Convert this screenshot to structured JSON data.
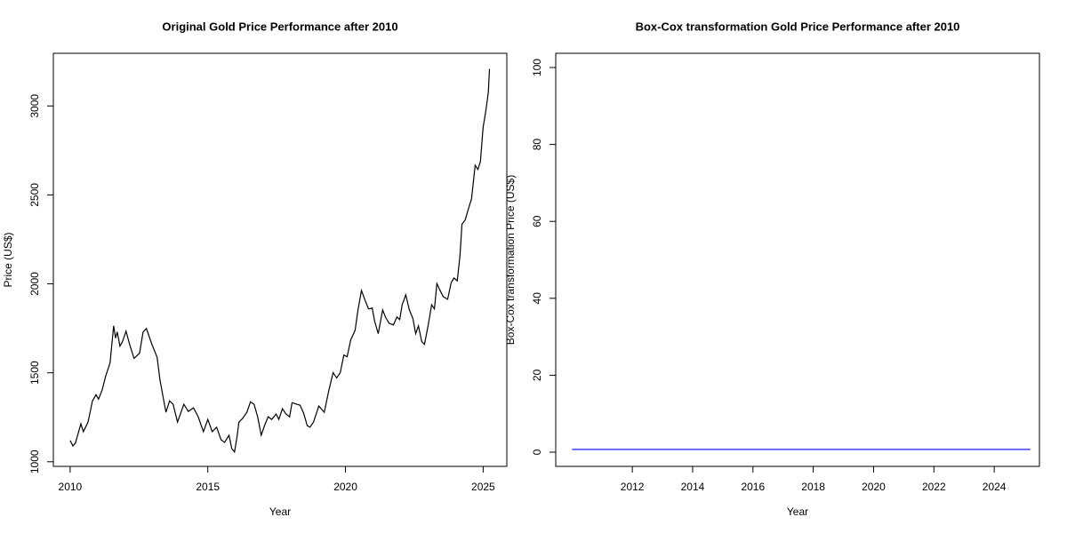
{
  "chart_data": [
    {
      "type": "line",
      "title": "Original Gold Price Performance after 2010",
      "x_label": "Year",
      "y_label": "Price (US$)",
      "xlim": [
        2009.39,
        2025.86
      ],
      "ylim": [
        974,
        3296
      ],
      "xticks": [
        2010,
        2015,
        2020,
        2025
      ],
      "yticks": [
        1000,
        1500,
        2000,
        2500,
        3000
      ],
      "color": "#000000",
      "x": [
        2010.0,
        2010.1,
        2010.19,
        2010.39,
        2010.48,
        2010.65,
        2010.81,
        2010.94,
        2011.03,
        2011.16,
        2011.29,
        2011.45,
        2011.58,
        2011.65,
        2011.71,
        2011.81,
        2011.9,
        2012.03,
        2012.16,
        2012.32,
        2012.52,
        2012.65,
        2012.77,
        2012.97,
        2013.16,
        2013.26,
        2013.39,
        2013.48,
        2013.61,
        2013.74,
        2013.9,
        2014.13,
        2014.29,
        2014.48,
        2014.65,
        2014.84,
        2015.0,
        2015.16,
        2015.32,
        2015.48,
        2015.61,
        2015.77,
        2015.87,
        2015.97,
        2016.06,
        2016.13,
        2016.26,
        2016.42,
        2016.55,
        2016.68,
        2016.81,
        2016.94,
        2017.06,
        2017.19,
        2017.32,
        2017.48,
        2017.58,
        2017.71,
        2017.84,
        2017.97,
        2018.06,
        2018.23,
        2018.35,
        2018.48,
        2018.61,
        2018.71,
        2018.84,
        2019.03,
        2019.23,
        2019.39,
        2019.55,
        2019.68,
        2019.81,
        2019.94,
        2020.06,
        2020.19,
        2020.35,
        2020.45,
        2020.58,
        2020.71,
        2020.84,
        2020.97,
        2021.06,
        2021.19,
        2021.35,
        2021.45,
        2021.58,
        2021.74,
        2021.87,
        2021.97,
        2022.06,
        2022.19,
        2022.32,
        2022.45,
        2022.55,
        2022.65,
        2022.77,
        2022.87,
        2023.0,
        2023.13,
        2023.23,
        2023.32,
        2023.42,
        2023.55,
        2023.71,
        2023.84,
        2023.94,
        2024.06,
        2024.16,
        2024.23,
        2024.35,
        2024.45,
        2024.58,
        2024.71,
        2024.81,
        2024.9,
        2025.0,
        2025.1,
        2025.19,
        2025.23
      ],
      "values": [
        1119,
        1089,
        1104,
        1213,
        1169,
        1223,
        1342,
        1377,
        1352,
        1402,
        1481,
        1556,
        1764,
        1695,
        1730,
        1650,
        1675,
        1734,
        1660,
        1581,
        1610,
        1730,
        1749,
        1660,
        1586,
        1462,
        1352,
        1278,
        1342,
        1323,
        1223,
        1323,
        1283,
        1303,
        1253,
        1169,
        1238,
        1169,
        1194,
        1124,
        1109,
        1149,
        1074,
        1055,
        1139,
        1223,
        1243,
        1278,
        1337,
        1323,
        1253,
        1149,
        1203,
        1253,
        1238,
        1268,
        1238,
        1298,
        1268,
        1253,
        1332,
        1323,
        1318,
        1273,
        1203,
        1194,
        1223,
        1313,
        1278,
        1397,
        1501,
        1471,
        1501,
        1600,
        1590,
        1685,
        1739,
        1849,
        1963,
        1908,
        1859,
        1864,
        1789,
        1720,
        1854,
        1814,
        1779,
        1769,
        1814,
        1799,
        1883,
        1938,
        1854,
        1804,
        1720,
        1764,
        1675,
        1660,
        1764,
        1883,
        1859,
        2002,
        1968,
        1928,
        1913,
        2007,
        2033,
        2017,
        2161,
        2335,
        2360,
        2414,
        2479,
        2667,
        2643,
        2687,
        2881,
        2975,
        3079,
        3208
      ]
    },
    {
      "type": "line",
      "title": "Box-Cox transformation Gold Price Performance after 2010",
      "x_label": "Year",
      "y_label": "Box-Cox transformation Price (US$)",
      "xlim": [
        2009.46,
        2025.5
      ],
      "ylim": [
        -3.7,
        103.7
      ],
      "xticks": [
        2012,
        2014,
        2016,
        2018,
        2020,
        2022,
        2024
      ],
      "yticks": [
        0,
        20,
        40,
        60,
        80,
        100
      ],
      "color": "#0000ff",
      "x": [
        2010.0,
        2025.2
      ],
      "values": [
        0.7,
        0.7
      ]
    }
  ]
}
